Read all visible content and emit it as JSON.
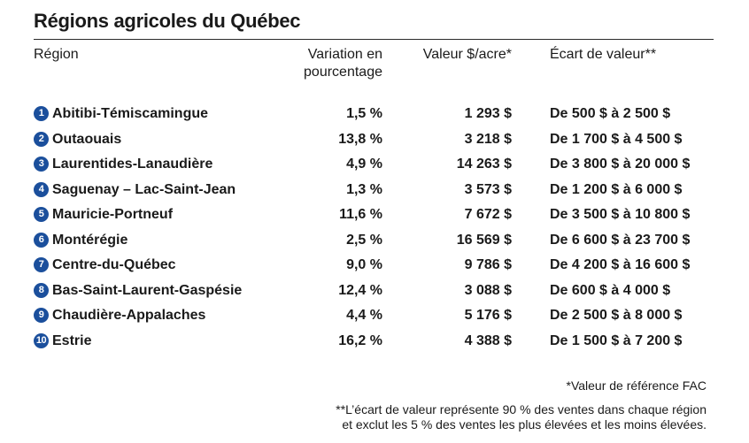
{
  "title": "Régions agricoles du Québec",
  "headers": {
    "region": "Région",
    "variation_line1": "Variation en",
    "variation_line2": "pourcentage",
    "valeur": "Valeur $/acre*",
    "ecart": "Écart de valeur**"
  },
  "badge_color": "#1b4f9c",
  "rows": [
    {
      "num": "1",
      "region": "Abitibi-Témiscamingue",
      "variation": "1,5 %",
      "valeur": "1 293 $",
      "ecart": "De 500 $ à 2 500 $"
    },
    {
      "num": "2",
      "region": "Outaouais",
      "variation": "13,8 %",
      "valeur": "3 218 $",
      "ecart": "De 1 700 $ à 4 500 $"
    },
    {
      "num": "3",
      "region": "Laurentides-Lanaudière",
      "variation": "4,9 %",
      "valeur": "14 263 $",
      "ecart": "De 3 800 $ à 20 000 $"
    },
    {
      "num": "4",
      "region": "Saguenay – Lac-Saint-Jean",
      "variation": "1,3 %",
      "valeur": "3 573 $",
      "ecart": "De 1 200 $ à 6 000 $"
    },
    {
      "num": "5",
      "region": "Mauricie-Portneuf",
      "variation": "11,6 %",
      "valeur": "7 672 $",
      "ecart": "De 3 500 $ à 10 800 $"
    },
    {
      "num": "6",
      "region": "Montérégie",
      "variation": "2,5 %",
      "valeur": "16 569 $",
      "ecart": "De 6 600 $ à 23 700 $"
    },
    {
      "num": "7",
      "region": "Centre-du-Québec",
      "variation": "9,0 %",
      "valeur": "9 786 $",
      "ecart": "De 4 200 $ à 16 600 $"
    },
    {
      "num": "8",
      "region": "Bas-Saint-Laurent-Gaspésie",
      "variation": "12,4 %",
      "valeur": "3 088 $",
      "ecart": "De 600 $ à 4 000 $"
    },
    {
      "num": "9",
      "region": "Chaudière-Appalaches",
      "variation": "4,4 %",
      "valeur": "5 176 $",
      "ecart": "De 2 500 $ à 8 000 $"
    },
    {
      "num": "10",
      "region": "Estrie",
      "variation": "16,2 %",
      "valeur": "4 388 $",
      "ecart": "De 1 500 $ à 7 200 $"
    }
  ],
  "notes": {
    "reference": "*Valeur de référence FAC",
    "ecart_line1": "**L’écart de valeur représente 90 % des ventes dans chaque région",
    "ecart_line2": "et exclut les 5 % des ventes les plus élevées et les moins élevées."
  }
}
